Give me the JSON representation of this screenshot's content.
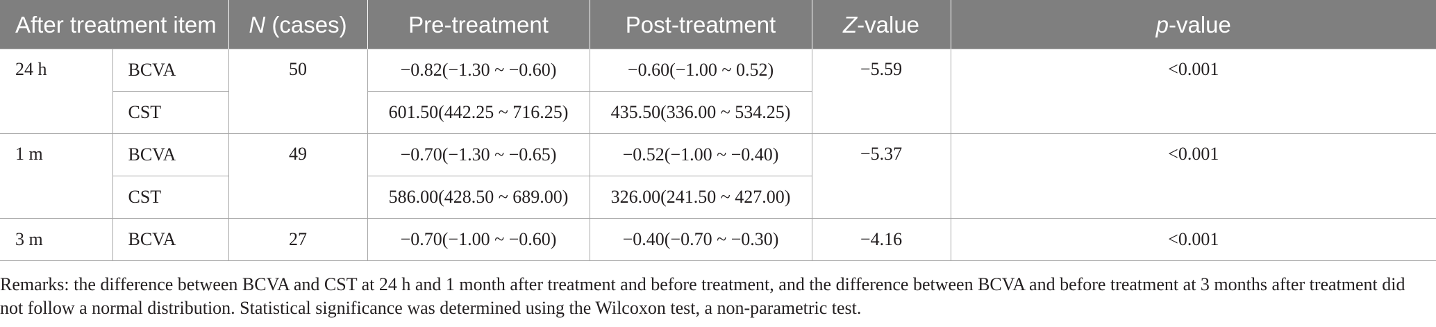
{
  "table": {
    "header": {
      "item": "After treatment item",
      "n_prefix": "N",
      "n_suffix": " (cases)",
      "pre": "Pre-treatment",
      "post": "Post-treatment",
      "z_prefix": "Z",
      "z_suffix": "-value",
      "p_prefix": "p",
      "p_suffix": "-value"
    },
    "groups": [
      {
        "time": "24 h",
        "n": "50",
        "z": "−5.59",
        "p": "<0.001",
        "rows": [
          {
            "measure": "BCVA",
            "pre": "−0.82(−1.30 ~ −0.60)",
            "post": "−0.60(−1.00 ~ 0.52)"
          },
          {
            "measure": "CST",
            "pre": "601.50(442.25 ~ 716.25)",
            "post": "435.50(336.00 ~ 534.25)"
          }
        ]
      },
      {
        "time": "1 m",
        "n": "49",
        "z": "−5.37",
        "p": "<0.001",
        "rows": [
          {
            "measure": "BCVA",
            "pre": "−0.70(−1.30 ~ −0.65)",
            "post": "−0.52(−1.00 ~ −0.40)"
          },
          {
            "measure": "CST",
            "pre": "586.00(428.50 ~ 689.00)",
            "post": "326.00(241.50 ~ 427.00)"
          }
        ]
      },
      {
        "time": "3 m",
        "n": "27",
        "z": "−4.16",
        "p": "<0.001",
        "rows": [
          {
            "measure": "BCVA",
            "pre": "−0.70(−1.00 ~ −0.60)",
            "post": "−0.40(−0.70 ~ −0.30)"
          }
        ]
      }
    ]
  },
  "remarks": "Remarks: the difference between BCVA and CST at 24 h and 1 month after treatment and before treatment, and the difference between BCVA and before treatment at 3 months after treatment did not follow a normal distribution. Statistical significance was determined using the Wilcoxon test, a non-parametric test."
}
